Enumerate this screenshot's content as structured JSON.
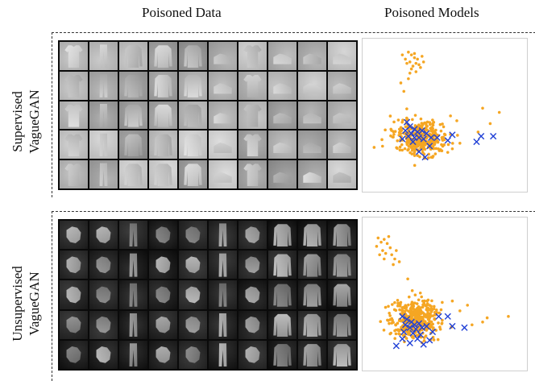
{
  "headers": {
    "col1": "Poisoned Data",
    "col2": "Poisoned Models"
  },
  "panels": [
    {
      "label_line1": "Supervised",
      "label_line2": "VagueGAN",
      "tile_style": "light",
      "garment_icons": [
        "tshirt",
        "trouser",
        "pullover",
        "pullover",
        "pullover",
        "sneaker",
        "tshirt",
        "sneaker",
        "sneaker",
        "sneaker"
      ],
      "scatter": {
        "benign_color": "#f5a623",
        "poison_color": "#1f3fd6",
        "benign_cluster": {
          "center": [
            0.34,
            0.66
          ],
          "spread": [
            0.16,
            0.11
          ],
          "count": 380
        },
        "benign_outliers": [
          [
            0.26,
            0.05
          ],
          [
            0.28,
            0.07
          ],
          [
            0.3,
            0.09
          ],
          [
            0.32,
            0.1
          ],
          [
            0.27,
            0.12
          ],
          [
            0.31,
            0.13
          ],
          [
            0.35,
            0.08
          ],
          [
            0.29,
            0.15
          ],
          [
            0.24,
            0.1
          ],
          [
            0.33,
            0.14
          ],
          [
            0.25,
            0.13
          ],
          [
            0.3,
            0.06
          ],
          [
            0.28,
            0.17
          ],
          [
            0.22,
            0.07
          ],
          [
            0.36,
            0.12
          ],
          [
            0.31,
            0.19
          ],
          [
            0.27,
            0.2
          ],
          [
            0.34,
            0.16
          ],
          [
            0.26,
            0.24
          ],
          [
            0.21,
            0.27
          ],
          [
            0.23,
            0.33
          ],
          [
            0.75,
            0.45
          ],
          [
            0.86,
            0.48
          ],
          [
            0.8,
            0.56
          ],
          [
            0.72,
            0.62
          ],
          [
            0.6,
            0.7
          ],
          [
            0.55,
            0.74
          ]
        ],
        "poison_points": [
          [
            0.25,
            0.55
          ],
          [
            0.27,
            0.58
          ],
          [
            0.3,
            0.6
          ],
          [
            0.32,
            0.62
          ],
          [
            0.28,
            0.63
          ],
          [
            0.35,
            0.61
          ],
          [
            0.38,
            0.63
          ],
          [
            0.24,
            0.61
          ],
          [
            0.26,
            0.65
          ],
          [
            0.3,
            0.66
          ],
          [
            0.33,
            0.66
          ],
          [
            0.36,
            0.67
          ],
          [
            0.29,
            0.69
          ],
          [
            0.41,
            0.66
          ],
          [
            0.45,
            0.66
          ],
          [
            0.52,
            0.68
          ],
          [
            0.55,
            0.64
          ],
          [
            0.71,
            0.69
          ],
          [
            0.74,
            0.65
          ],
          [
            0.82,
            0.65
          ],
          [
            0.37,
            0.8
          ],
          [
            0.33,
            0.76
          ],
          [
            0.22,
            0.67
          ],
          [
            0.4,
            0.72
          ]
        ]
      }
    },
    {
      "label_line1": "Unsupervised",
      "label_line2": "VagueGAN",
      "tile_style": "dark",
      "garment_icons": [
        "blob",
        "blob",
        "trouser",
        "blob",
        "blob",
        "trouser",
        "blob",
        "pullover",
        "pullover",
        "pullover"
      ],
      "scatter": {
        "benign_color": "#f5a623",
        "poison_color": "#1f3fd6",
        "benign_cluster": {
          "center": [
            0.3,
            0.68
          ],
          "spread": [
            0.14,
            0.13
          ],
          "count": 420
        },
        "benign_outliers": [
          [
            0.06,
            0.1
          ],
          [
            0.08,
            0.13
          ],
          [
            0.1,
            0.11
          ],
          [
            0.12,
            0.14
          ],
          [
            0.14,
            0.17
          ],
          [
            0.09,
            0.19
          ],
          [
            0.11,
            0.21
          ],
          [
            0.15,
            0.22
          ],
          [
            0.18,
            0.19
          ],
          [
            0.05,
            0.16
          ],
          [
            0.13,
            0.09
          ],
          [
            0.17,
            0.25
          ],
          [
            0.2,
            0.27
          ],
          [
            0.1,
            0.25
          ],
          [
            0.16,
            0.29
          ],
          [
            0.07,
            0.22
          ],
          [
            0.55,
            0.55
          ],
          [
            0.6,
            0.62
          ],
          [
            0.65,
            0.58
          ],
          [
            0.68,
            0.72
          ],
          [
            0.75,
            0.7
          ],
          [
            0.78,
            0.67
          ],
          [
            0.92,
            0.66
          ]
        ],
        "poison_points": [
          [
            0.22,
            0.66
          ],
          [
            0.25,
            0.68
          ],
          [
            0.28,
            0.7
          ],
          [
            0.3,
            0.72
          ],
          [
            0.27,
            0.74
          ],
          [
            0.33,
            0.71
          ],
          [
            0.24,
            0.72
          ],
          [
            0.31,
            0.75
          ],
          [
            0.35,
            0.74
          ],
          [
            0.29,
            0.78
          ],
          [
            0.23,
            0.77
          ],
          [
            0.38,
            0.73
          ],
          [
            0.42,
            0.77
          ],
          [
            0.46,
            0.66
          ],
          [
            0.52,
            0.66
          ],
          [
            0.55,
            0.73
          ],
          [
            0.63,
            0.74
          ],
          [
            0.32,
            0.82
          ],
          [
            0.36,
            0.86
          ],
          [
            0.27,
            0.85
          ],
          [
            0.22,
            0.82
          ],
          [
            0.18,
            0.87
          ],
          [
            0.4,
            0.83
          ],
          [
            0.34,
            0.79
          ]
        ]
      }
    }
  ]
}
